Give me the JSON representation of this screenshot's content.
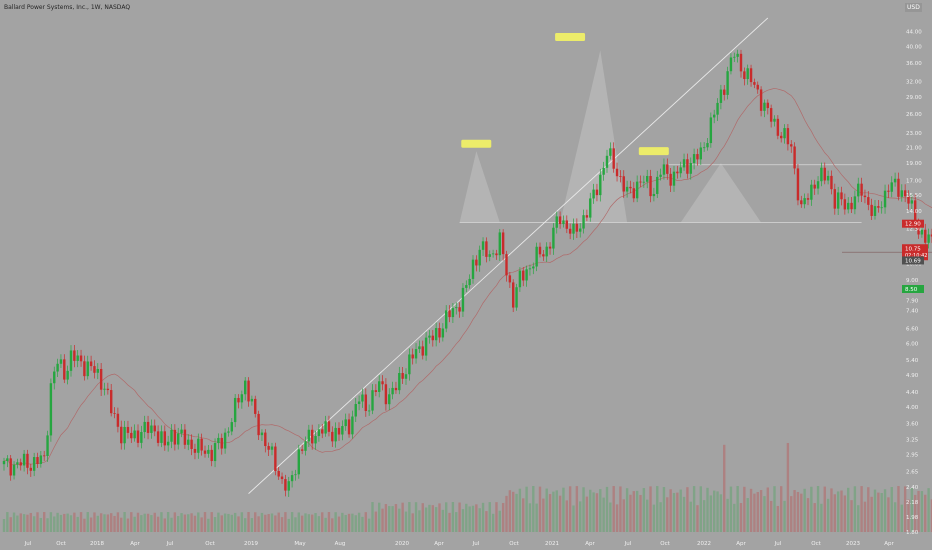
{
  "header": {
    "symbol_title": "Ballard Power Systems, Inc., 1W, NASDAQ",
    "currency": "USD"
  },
  "chart_data": {
    "type": "candlestick",
    "title": "Ballard Power Systems, Inc., 1W, NASDAQ",
    "y_scale": "log",
    "ylim": [
      1.8,
      48.0
    ],
    "y_ticks": [
      "44.00",
      "40.00",
      "36.00",
      "32.00",
      "29.00",
      "26.00",
      "23.00",
      "21.00",
      "19.00",
      "17.00",
      "15.50",
      "14.00",
      "12.50",
      "11.00",
      "10.00",
      "9.00",
      "7.90",
      "7.40",
      "6.60",
      "6.00",
      "5.40",
      "4.90",
      "4.40",
      "4.00",
      "3.60",
      "3.25",
      "2.95",
      "2.65",
      "2.40",
      "2.18",
      "1.98",
      "1.80"
    ],
    "x_ticks": [
      "Jul",
      "Oct",
      "2018",
      "Apr",
      "Jul",
      "Oct",
      "2019",
      "May",
      "Aug",
      "2020",
      "Apr",
      "Jul",
      "Oct",
      "2021",
      "Apr",
      "Jul",
      "Oct",
      "2022",
      "Apr",
      "Jul",
      "Oct",
      "2023",
      "Apr"
    ],
    "grid": false,
    "colors": {
      "up": "#26a640",
      "down": "#c92b2b",
      "background": "#a3a3a3",
      "ma": "#b06a6a",
      "trendline": "#e8e8e8",
      "pattern_fill": "#b9b9b9",
      "head_marker": "#ecec6a",
      "stop_zone": "#c69292",
      "target_zone": "#8fae8f"
    },
    "series_keypoints": {
      "weeks": [
        0,
        4,
        8,
        12,
        13,
        14,
        16,
        18,
        20,
        25,
        28,
        30,
        32,
        35,
        38,
        40,
        45,
        48,
        50,
        55,
        58,
        62,
        65,
        68,
        70,
        72,
        75,
        78,
        80,
        83,
        85,
        88,
        92,
        95,
        100,
        103,
        106,
        108,
        112,
        115,
        117,
        119,
        122,
        125,
        128,
        132,
        135,
        138,
        140,
        142,
        145,
        148,
        150,
        152,
        154,
        158,
        162,
        166,
        170,
        175,
        178,
        180,
        182,
        186,
        190,
        194,
        196,
        200,
        204,
        208,
        210,
        213,
        216,
        218,
        222,
        225,
        228,
        232,
        235,
        238,
        242,
        246,
        248,
        252,
        256,
        260,
        264,
        268,
        270,
        272,
        275,
        278,
        280
      ],
      "close": [
        2.75,
        2.78,
        2.8,
        2.85,
        3.6,
        4.6,
        5.3,
        5.0,
        5.5,
        5.2,
        4.9,
        4.6,
        3.9,
        3.4,
        3.3,
        3.4,
        3.5,
        3.1,
        3.4,
        3.2,
        3.05,
        3.0,
        3.2,
        3.7,
        4.2,
        4.7,
        3.7,
        3.2,
        2.9,
        2.5,
        2.35,
        3.0,
        3.35,
        3.45,
        3.4,
        3.6,
        4.2,
        4.0,
        4.6,
        4.3,
        4.5,
        5.0,
        5.5,
        6.0,
        6.2,
        7.0,
        7.6,
        8.5,
        10.0,
        11.0,
        10.5,
        11.5,
        9.5,
        8.0,
        9.0,
        10.2,
        11.0,
        13.5,
        12.0,
        14.5,
        17.5,
        20.0,
        19.0,
        15.5,
        17.0,
        16.0,
        18.0,
        17.5,
        19.0,
        20.0,
        23.0,
        27.5,
        34.0,
        38.0,
        33.0,
        30.0,
        26.0,
        23.0,
        21.0,
        14.0,
        17.0,
        17.5,
        15.0,
        14.5,
        16.0,
        13.5,
        16.5,
        16.0,
        15.0,
        13.0,
        11.8,
        11.2,
        10.75
      ]
    },
    "annotations": {
      "head_markers": 3,
      "stop_label": "12.90",
      "current_price": "10.75",
      "countdown": "02:10:42",
      "close_label": "10.69",
      "target_label": "8.50"
    }
  }
}
